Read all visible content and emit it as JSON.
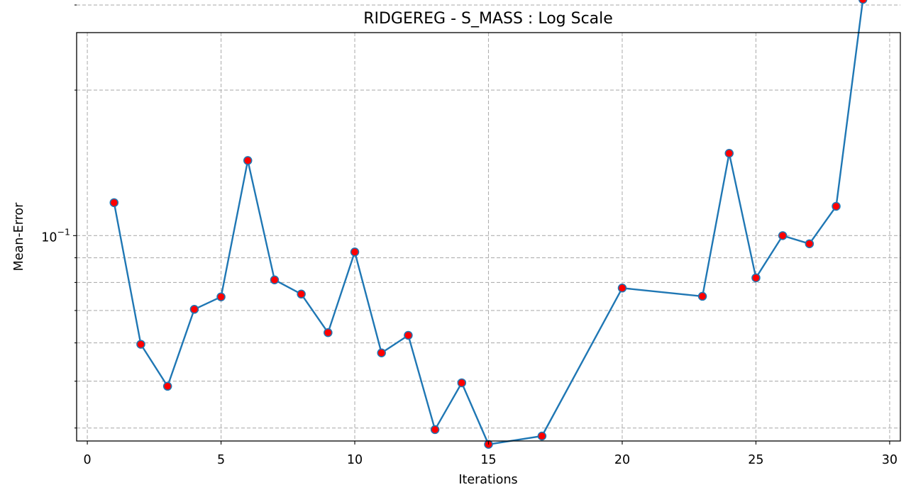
{
  "chart_data": {
    "type": "line",
    "title": "RIDGEREG - S_MASS : Log Scale",
    "xlabel": "Iterations",
    "ylabel": "Mean-Error",
    "yscale": "log",
    "xlim": [
      -0.4,
      30.4
    ],
    "ylim": [
      0.0376,
      0.263
    ],
    "xticks": [
      0,
      5,
      10,
      15,
      20,
      25,
      30
    ],
    "xtick_labels": [
      "0",
      "5",
      "10",
      "15",
      "20",
      "25",
      "30"
    ],
    "ytick_major": [
      {
        "value": 0.1,
        "base": "10",
        "exponent": "−1"
      }
    ],
    "ytick_minor": [
      0.04,
      0.05,
      0.06,
      0.07,
      0.08,
      0.09,
      0.2,
      0.3
    ],
    "grid": true,
    "line_color": "#1f77b4",
    "marker_color": "#ff0000",
    "series": [
      {
        "x": [
          1,
          2,
          3,
          4,
          5,
          6,
          7,
          8,
          9,
          10,
          11,
          12,
          13,
          14,
          15,
          17,
          20,
          23,
          24,
          25,
          26,
          27,
          28,
          29
        ],
        "y": [
          0.117,
          0.0596,
          0.0488,
          0.0704,
          0.0747,
          0.143,
          0.081,
          0.0757,
          0.063,
          0.0925,
          0.0572,
          0.0622,
          0.0397,
          0.0496,
          0.037,
          0.0385,
          0.0779,
          0.0749,
          0.148,
          0.0818,
          0.1,
          0.0962,
          0.115,
          0.308
        ]
      }
    ]
  }
}
